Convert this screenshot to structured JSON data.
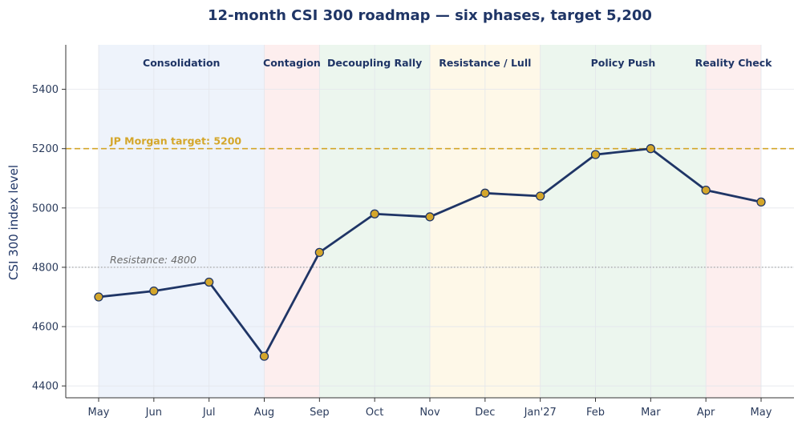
{
  "chart_data": {
    "type": "line",
    "title": "12-month CSI 300 roadmap — six phases, target 5,200",
    "xlabel": "",
    "ylabel": "CSI 300 index level",
    "ylim": [
      4360,
      5550
    ],
    "yticks": [
      4400,
      4600,
      4800,
      5000,
      5200,
      5400
    ],
    "grid": true,
    "categories": [
      "May",
      "Jun",
      "Jul",
      "Aug",
      "Sep",
      "Oct",
      "Nov",
      "Dec",
      "Jan'27",
      "Feb",
      "Mar",
      "Apr",
      "May"
    ],
    "series": [
      {
        "values": [
          4700,
          4720,
          4750,
          4500,
          4850,
          4980,
          4970,
          5050,
          5040,
          5180,
          5200,
          5060,
          5020
        ]
      }
    ],
    "phases": [
      {
        "label": "Consolidation",
        "start": 0,
        "end": 3,
        "color": "#eef3fb"
      },
      {
        "label": "Contagion",
        "start": 3,
        "end": 4,
        "color": "#fdeeee"
      },
      {
        "label": "Decoupling Rally",
        "start": 4,
        "end": 6,
        "color": "#ecf6ee"
      },
      {
        "label": "Resistance / Lull",
        "start": 6,
        "end": 8,
        "color": "#fef8e8"
      },
      {
        "label": "Policy Push",
        "start": 8,
        "end": 11,
        "color": "#ecf6ee"
      },
      {
        "label": "Reality Check",
        "start": 11,
        "end": 12,
        "color": "#fdeeee"
      }
    ],
    "reference_lines": [
      {
        "label": "JP Morgan target: 5200",
        "value": 5200,
        "color": "#d4a62a",
        "style": "dashed"
      },
      {
        "label": "Resistance: 4800",
        "value": 4800,
        "color": "#9a9a9a",
        "style": "dotted"
      }
    ],
    "colors": {
      "line": "#1f3566",
      "marker_fill": "#d4a62a",
      "marker_edge": "#1f3566"
    }
  }
}
